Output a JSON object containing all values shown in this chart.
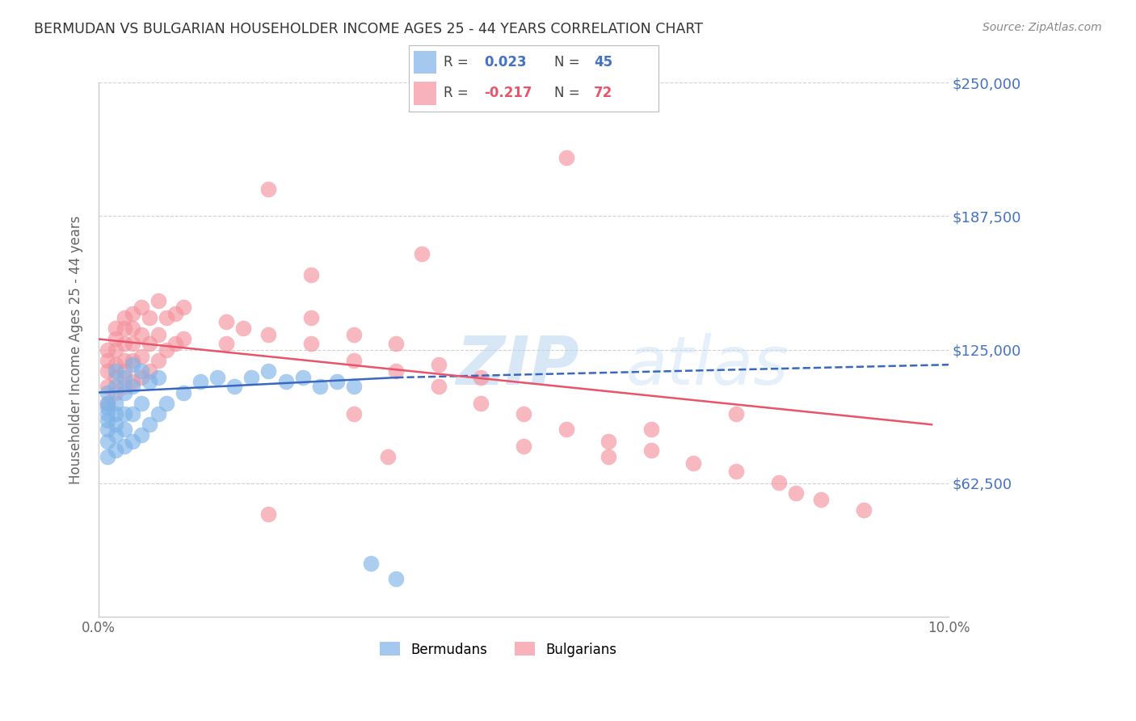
{
  "title": "BERMUDAN VS BULGARIAN HOUSEHOLDER INCOME AGES 25 - 44 YEARS CORRELATION CHART",
  "source": "Source: ZipAtlas.com",
  "ylabel": "Householder Income Ages 25 - 44 years",
  "xlim": [
    0.0,
    0.1
  ],
  "ylim": [
    0,
    250000
  ],
  "yticks": [
    0,
    62500,
    125000,
    187500,
    250000
  ],
  "ytick_labels": [
    "",
    "$62,500",
    "$125,000",
    "$187,500",
    "$250,000"
  ],
  "bermudans_color": "#7fb3e8",
  "bulgarians_color": "#f4929e",
  "bermudans_line_color": "#3a67c0",
  "bulgarians_line_color": "#e8546a",
  "watermark_zip": "ZIP",
  "watermark_atlas": "atlas",
  "grid_color": "#cccccc",
  "background_color": "#ffffff",
  "right_label_color": "#4472c4",
  "title_color": "#333333",
  "source_color": "#888888",
  "bermudans_x": [
    0.001,
    0.001,
    0.001,
    0.001,
    0.001,
    0.001,
    0.001,
    0.001,
    0.002,
    0.002,
    0.002,
    0.002,
    0.002,
    0.002,
    0.002,
    0.003,
    0.003,
    0.003,
    0.003,
    0.003,
    0.004,
    0.004,
    0.004,
    0.004,
    0.005,
    0.005,
    0.005,
    0.006,
    0.006,
    0.007,
    0.007,
    0.008,
    0.01,
    0.012,
    0.014,
    0.016,
    0.018,
    0.02,
    0.022,
    0.024,
    0.026,
    0.028,
    0.03,
    0.032,
    0.035
  ],
  "bermudans_y": [
    75000,
    82000,
    88000,
    92000,
    95000,
    98000,
    100000,
    105000,
    78000,
    85000,
    90000,
    95000,
    100000,
    108000,
    115000,
    80000,
    88000,
    95000,
    105000,
    112000,
    82000,
    95000,
    108000,
    118000,
    85000,
    100000,
    115000,
    90000,
    110000,
    95000,
    112000,
    100000,
    105000,
    110000,
    112000,
    108000,
    112000,
    115000,
    110000,
    112000,
    108000,
    110000,
    108000,
    25000,
    18000
  ],
  "bulgarians_x": [
    0.001,
    0.001,
    0.001,
    0.001,
    0.001,
    0.002,
    0.002,
    0.002,
    0.002,
    0.002,
    0.002,
    0.003,
    0.003,
    0.003,
    0.003,
    0.003,
    0.003,
    0.004,
    0.004,
    0.004,
    0.004,
    0.004,
    0.005,
    0.005,
    0.005,
    0.005,
    0.006,
    0.006,
    0.006,
    0.007,
    0.007,
    0.007,
    0.008,
    0.008,
    0.009,
    0.009,
    0.01,
    0.01,
    0.015,
    0.015,
    0.02,
    0.025,
    0.025,
    0.03,
    0.03,
    0.035,
    0.035,
    0.04,
    0.04,
    0.045,
    0.045,
    0.05,
    0.055,
    0.06,
    0.065,
    0.07,
    0.075,
    0.08,
    0.082,
    0.085,
    0.09,
    0.034,
    0.02,
    0.017,
    0.03,
    0.025,
    0.038,
    0.02,
    0.055,
    0.065,
    0.075,
    0.06,
    0.05
  ],
  "bulgarians_y": [
    100000,
    108000,
    115000,
    120000,
    125000,
    105000,
    112000,
    118000,
    125000,
    130000,
    135000,
    108000,
    115000,
    120000,
    128000,
    135000,
    140000,
    110000,
    120000,
    128000,
    135000,
    142000,
    112000,
    122000,
    132000,
    145000,
    115000,
    128000,
    140000,
    120000,
    132000,
    148000,
    125000,
    140000,
    128000,
    142000,
    130000,
    145000,
    128000,
    138000,
    132000,
    128000,
    140000,
    120000,
    132000,
    115000,
    128000,
    108000,
    118000,
    100000,
    112000,
    95000,
    88000,
    82000,
    78000,
    72000,
    68000,
    63000,
    58000,
    55000,
    50000,
    75000,
    48000,
    135000,
    95000,
    160000,
    170000,
    200000,
    215000,
    88000,
    95000,
    75000,
    80000
  ]
}
